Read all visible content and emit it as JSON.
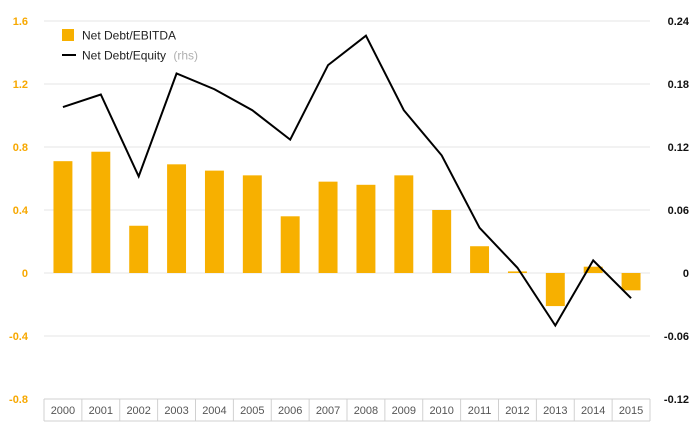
{
  "chart_data": {
    "type": "bar+line",
    "categories": [
      "2000",
      "2001",
      "2002",
      "2003",
      "2004",
      "2005",
      "2006",
      "2007",
      "2008",
      "2009",
      "2010",
      "2011",
      "2012",
      "2013",
      "2014",
      "2015"
    ],
    "series": [
      {
        "name": "Net Debt/EBITDA",
        "type": "bar",
        "axis": "left",
        "color": "#f7b000",
        "values": [
          0.71,
          0.77,
          0.3,
          0.69,
          0.65,
          0.62,
          0.36,
          0.58,
          0.56,
          0.62,
          0.4,
          0.17,
          0.01,
          -0.21,
          0.04,
          -0.11
        ]
      },
      {
        "name": "Net Debt/Equity",
        "type": "line",
        "axis": "right",
        "color": "#000000",
        "values": [
          0.158,
          0.17,
          0.092,
          0.19,
          0.175,
          0.155,
          0.127,
          0.198,
          0.226,
          0.155,
          0.112,
          0.043,
          0.005,
          -0.05,
          0.012,
          -0.024
        ]
      }
    ],
    "legend": [
      {
        "label": "Net Debt/EBITDA",
        "note": ""
      },
      {
        "label": "Net Debt/Equity",
        "note": "(rhs)"
      }
    ],
    "legend_position": "top-left",
    "y_left": {
      "min": -0.8,
      "max": 1.6,
      "ticks": [
        -0.8,
        -0.4,
        0,
        0.4,
        0.8,
        1.2,
        1.6
      ],
      "tick_labels": [
        "-0.8",
        "-0.4",
        "0",
        "0.4",
        "0.8",
        "1.2",
        "1.6"
      ],
      "color": "#f7a800"
    },
    "y_right": {
      "min": -0.12,
      "max": 0.24,
      "ticks": [
        -0.12,
        -0.06,
        0,
        0.06,
        0.12,
        0.18,
        0.24
      ],
      "tick_labels": [
        "-0.12",
        "-0.06",
        "0",
        "0.06",
        "0.12",
        "0.18",
        "0.24"
      ],
      "color": "#111111"
    },
    "grid": true
  }
}
